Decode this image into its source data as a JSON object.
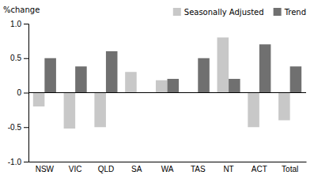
{
  "chart_data": {
    "type": "bar",
    "ylabel": "%change",
    "categories": [
      "NSW",
      "VIC",
      "QLD",
      "SA",
      "WA",
      "TAS",
      "NT",
      "ACT",
      "Total"
    ],
    "series": [
      {
        "name": "Seasonally Adjusted",
        "color": "#c8c8c8",
        "values": [
          -0.2,
          -0.52,
          -0.5,
          0.3,
          0.18,
          0.0,
          0.8,
          -0.5,
          -0.4
        ]
      },
      {
        "name": "Trend",
        "color": "#707070",
        "values": [
          0.5,
          0.38,
          0.6,
          0.0,
          0.2,
          0.5,
          0.2,
          0.7,
          0.38
        ]
      }
    ],
    "ylim": [
      -1.0,
      1.0
    ],
    "yticks": [
      {
        "value": -1.0,
        "label": "-1.0"
      },
      -0.5,
      0,
      0.5,
      {
        "value": 1.0,
        "label": "1.0"
      }
    ],
    "grid": false,
    "legend": "upper right"
  }
}
